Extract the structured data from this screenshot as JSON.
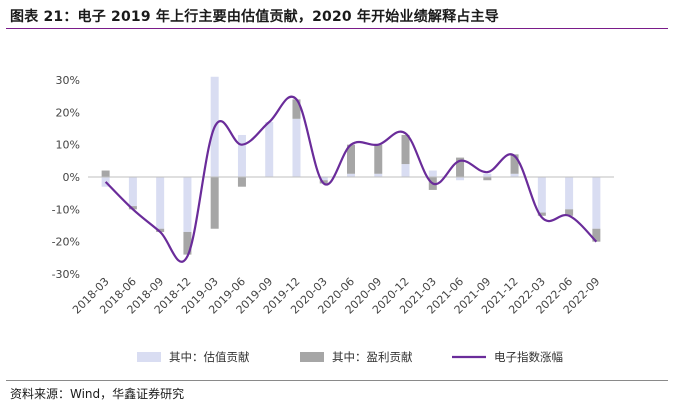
{
  "header": {
    "title": "图表 21：电子 2019 年上行主要由估值贡献，2020 年开始业绩解释占主导"
  },
  "footer": {
    "source": "资料来源：Wind，华鑫证券研究"
  },
  "colors": {
    "valuation": "#d9ddf2",
    "earnings": "#a6a6a6",
    "index": "#6a2c9a",
    "zero_line": "#bfbfbf",
    "rule": "#7a1c8a"
  },
  "chart_data": {
    "type": "bar+line",
    "title": "",
    "xlabel": "",
    "ylabel": "",
    "ylim": [
      -30,
      30
    ],
    "yticks": [
      "-30%",
      "-20%",
      "-10%",
      "0%",
      "10%",
      "20%",
      "30%"
    ],
    "categories": [
      "2018-03",
      "2018-06",
      "2018-09",
      "2018-12",
      "2019-03",
      "2019-06",
      "2019-09",
      "2019-12",
      "2020-03",
      "2020-06",
      "2020-09",
      "2020-12",
      "2021-03",
      "2021-06",
      "2021-09",
      "2021-12",
      "2022-03",
      "2022-06",
      "2022-09"
    ],
    "series": [
      {
        "name": "其中：估值贡献",
        "type": "bar",
        "values": [
          -3,
          -9,
          -16,
          -17,
          31,
          13,
          17,
          18,
          -1,
          1,
          1,
          4,
          2,
          -1,
          1,
          1,
          -11,
          -10,
          -16
        ]
      },
      {
        "name": "其中：盈利贡献",
        "type": "bar",
        "values": [
          2,
          -1,
          -1,
          -7,
          -16,
          -3,
          0,
          6,
          -1,
          9,
          9,
          9,
          -4,
          6,
          -1,
          6,
          -1,
          -2,
          -4
        ]
      },
      {
        "name": "电子指数涨幅",
        "type": "line",
        "values": [
          -1.5,
          -10,
          -17,
          -24.5,
          15.5,
          10,
          17,
          24,
          -2,
          10,
          10,
          13.5,
          -2,
          5,
          1.5,
          6.5,
          -12.5,
          -12,
          -20
        ]
      }
    ],
    "legend_position": "bottom"
  }
}
